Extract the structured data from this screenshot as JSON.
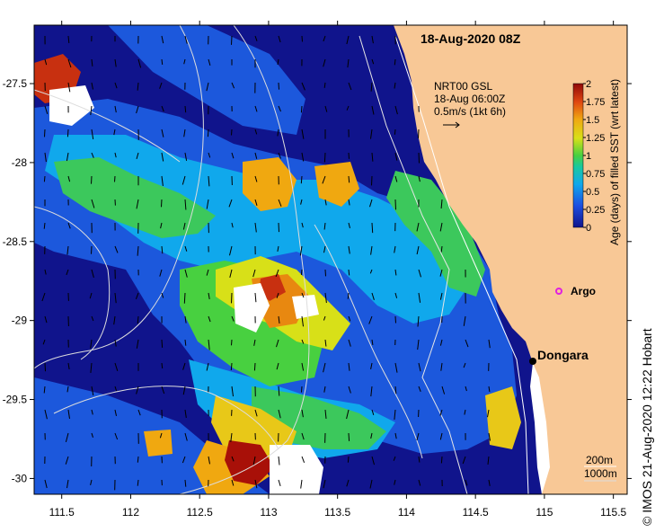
{
  "map": {
    "date_label": "18-Aug-2020 08Z",
    "current_info": {
      "line1": "NRT00 GSL",
      "line2": "18-Aug 06:00Z",
      "line3": "0.5m/s (1kt 6h)"
    },
    "lon_ticks": [
      "111.5",
      "112",
      "112.5",
      "113",
      "113.5",
      "114",
      "114.5",
      "115",
      "115.5"
    ],
    "lat_ticks": [
      "-27.5",
      "-28",
      "-28.5",
      "-29",
      "-29.5",
      "-30"
    ],
    "lon_range": [
      111.3,
      115.6
    ],
    "lat_range": [
      -30.1,
      -27.13
    ],
    "colorbar": {
      "title": "Age (days) of filled SST (wrt latest)",
      "labels": [
        "0",
        "0.25",
        "0.5",
        "0.75",
        "1",
        "1.25",
        "1.5",
        "1.75",
        "2"
      ],
      "range": [
        0,
        2
      ]
    },
    "places": [
      {
        "name": "Argo",
        "lon": 115.1,
        "lat": -28.77
      },
      {
        "name": "Dongara",
        "lon": 114.93,
        "lat": -29.25
      }
    ],
    "depth_legend": [
      "200m",
      "1000m"
    ],
    "colors": {
      "land": "#f8c896",
      "deep_blue": "#10148c",
      "argo_marker": "#e020e0"
    }
  },
  "credit": "© IMOS 21-Aug-2020 12:22 Hobart"
}
